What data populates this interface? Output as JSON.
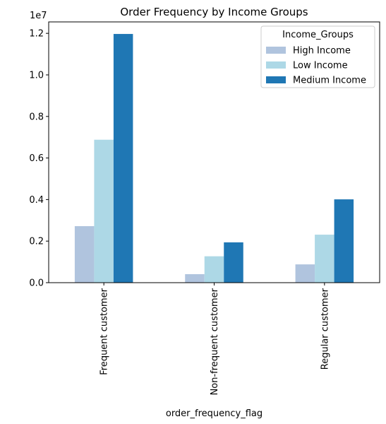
{
  "chart_data": {
    "type": "bar",
    "title": "Order Frequency by Income Groups",
    "xlabel": "order_frequency_flag",
    "ylabel": "",
    "y_offset_label": "1e7",
    "categories": [
      "Frequent customer",
      "Non-frequent customer",
      "Regular customer"
    ],
    "series": [
      {
        "name": "High Income",
        "color": "#b0c4de",
        "values": [
          2.72,
          0.41,
          0.88
        ]
      },
      {
        "name": "Low Income",
        "color": "#add8e6",
        "values": [
          6.88,
          1.27,
          2.31
        ]
      },
      {
        "name": "Medium Income",
        "color": "#1f77b4",
        "values": [
          11.97,
          1.94,
          4.01
        ]
      }
    ],
    "ylim": [
      0,
      12.55
    ],
    "yticks": [
      0.0,
      2.0,
      4.0,
      6.0,
      8.0,
      10.0,
      12.0
    ],
    "ytick_labels": [
      "0.0",
      "0.2",
      "0.4",
      "0.6",
      "0.8",
      "1.0",
      "1.2"
    ],
    "legend": {
      "title": "Income_Groups",
      "placement": "top-right"
    },
    "grid": false
  }
}
